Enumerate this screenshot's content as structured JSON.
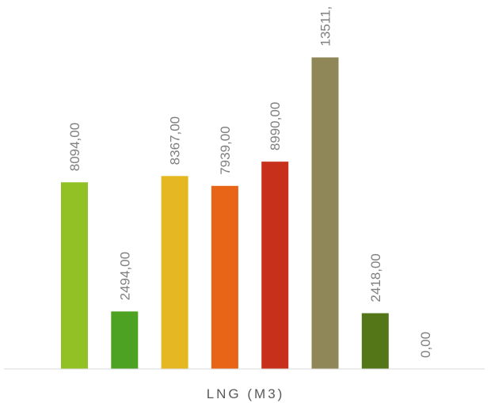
{
  "chart_data": {
    "type": "bar",
    "xlabel": "LNG (M3)",
    "ylabel": "",
    "ylim": [
      0,
      16000
    ],
    "grid": false,
    "legend": "none",
    "series": [
      {
        "values": [
          8094.0,
          2494.0,
          8367.0,
          7939.0,
          8990.0,
          13511.0,
          2418.0,
          0.0
        ],
        "labels": [
          "8094,00",
          "2494,00",
          "8367,00",
          "7939,00",
          "8990,00",
          "13511,",
          "2418,00",
          "0,00"
        ],
        "colors": [
          "#92c125",
          "#4ea223",
          "#e5b823",
          "#e86517",
          "#c7311b",
          "#8f8758",
          "#557519",
          "#7f7f7f"
        ]
      }
    ]
  }
}
